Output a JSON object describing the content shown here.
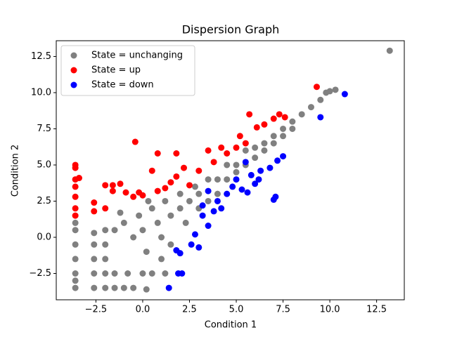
{
  "chart_data": {
    "type": "scatter",
    "title": "Dispersion Graph",
    "x_label": "Condition 1",
    "y_label": "Condition 2",
    "xlim": [
      -4.62,
      13.98
    ],
    "ylim": [
      -4.32,
      13.59
    ],
    "xticks": [
      {
        "value": -2.5,
        "label": "−2.5"
      },
      {
        "value": 0,
        "label": "0.0"
      },
      2.5,
      {
        "value": 5,
        "label": "5.0"
      },
      7.5,
      {
        "value": 10,
        "label": "10.0"
      },
      12.5
    ],
    "yticks": [
      {
        "value": -2.5,
        "label": "−2.5"
      },
      {
        "value": 0,
        "label": "0.0"
      },
      2.5,
      {
        "value": 5,
        "label": "5.0"
      },
      7.5,
      {
        "value": 10,
        "label": "10.0"
      },
      12.5
    ],
    "legend": "upper left",
    "series": [
      {
        "name": "State = unchanging",
        "color": "#808080",
        "x": [
          -3.6,
          -3.6,
          -3.6,
          -3.6,
          -3.6,
          -3.6,
          -3.6,
          -2.6,
          -2.6,
          -2.6,
          -2.6,
          -2.6,
          -2.0,
          -2.0,
          -2.0,
          -2.0,
          -2.0,
          -1.5,
          -1.0,
          -0.5,
          0.2,
          -1.5,
          -0.8,
          0.0,
          0.5,
          1.2,
          -1.5,
          -1.0,
          -0.5,
          -0.2,
          0.0,
          0.2,
          0.5,
          0.8,
          1.0,
          1.2,
          1.5,
          1.5,
          2.0,
          2.0,
          2.3,
          2.5,
          2.8,
          3.0,
          3.0,
          3.5,
          3.5,
          4.0,
          4.0,
          4.5,
          4.5,
          5.0,
          5.0,
          5.5,
          5.5,
          6.0,
          6.0,
          6.5,
          6.5,
          7.0,
          7.0,
          7.5,
          7.5,
          8.0,
          8.0,
          8.5,
          9.0,
          9.5,
          10.0,
          10.3,
          9.8,
          13.2,
          -1.2,
          0.3,
          1.0
        ],
        "values": [
          -3.5,
          -2.5,
          -1.5,
          -0.5,
          0.5,
          1.0,
          -3.0,
          -3.5,
          -2.5,
          -1.5,
          -0.5,
          0.3,
          -3.5,
          -2.5,
          -1.5,
          -0.5,
          0.5,
          -3.5,
          -3.5,
          -3.5,
          -3.6,
          -2.5,
          -2.5,
          -2.5,
          -2.5,
          -2.5,
          0.5,
          1.0,
          0.0,
          1.5,
          0.5,
          -1.0,
          2.0,
          1.0,
          0.0,
          2.5,
          1.5,
          -0.5,
          2.0,
          3.0,
          1.0,
          2.5,
          3.5,
          2.0,
          3.0,
          4.0,
          2.5,
          4.0,
          3.0,
          5.0,
          4.0,
          5.0,
          4.5,
          6.0,
          5.0,
          6.2,
          5.5,
          6.5,
          6.0,
          7.0,
          6.5,
          7.5,
          7.0,
          8.0,
          7.5,
          8.5,
          9.0,
          9.5,
          10.1,
          10.2,
          10.0,
          12.9,
          1.7,
          2.5,
          -1.5
        ]
      },
      {
        "name": "State = up",
        "color": "#ff0000",
        "x": [
          -3.6,
          -3.6,
          -3.6,
          -3.6,
          -3.6,
          -3.6,
          -3.6,
          -3.4,
          -2.6,
          -2.6,
          -2.0,
          -2.0,
          -1.6,
          -1.6,
          -1.2,
          -0.9,
          -0.5,
          -0.2,
          0.0,
          -0.4,
          0.5,
          0.8,
          0.8,
          1.2,
          1.5,
          1.8,
          1.8,
          2.2,
          2.5,
          3.0,
          3.5,
          3.8,
          4.2,
          4.5,
          5.0,
          5.2,
          5.7,
          5.5,
          6.1,
          6.5,
          7.0,
          7.3,
          7.6,
          9.3
        ],
        "values": [
          5.0,
          4.8,
          4.0,
          3.5,
          2.8,
          2.0,
          1.5,
          4.1,
          2.4,
          1.8,
          2.0,
          3.6,
          3.6,
          3.2,
          3.7,
          3.1,
          2.8,
          3.1,
          2.9,
          6.6,
          4.6,
          3.2,
          5.8,
          3.4,
          3.8,
          4.2,
          5.8,
          4.8,
          3.6,
          4.6,
          6.0,
          5.2,
          6.2,
          5.8,
          6.2,
          7.0,
          8.5,
          6.5,
          7.6,
          7.8,
          8.2,
          8.5,
          8.3,
          10.4
        ]
      },
      {
        "name": "State = down",
        "color": "#0000ff",
        "x": [
          10.8,
          9.5,
          7.5,
          7.2,
          7.0,
          7.1,
          6.8,
          6.3,
          6.2,
          6.0,
          5.5,
          5.6,
          5.8,
          5.3,
          5.0,
          4.8,
          4.5,
          4.2,
          3.8,
          3.5,
          3.2,
          2.8,
          3.0,
          2.6,
          2.0,
          2.1,
          1.9,
          1.4,
          1.8,
          3.5,
          3.2,
          4.0
        ],
        "values": [
          9.9,
          8.3,
          5.6,
          5.3,
          2.6,
          2.8,
          4.8,
          4.6,
          4.0,
          3.7,
          5.2,
          3.1,
          4.3,
          3.3,
          4.0,
          3.5,
          3.0,
          2.0,
          1.8,
          3.2,
          1.5,
          0.2,
          -0.7,
          -0.5,
          -1.1,
          -2.5,
          -2.5,
          -3.5,
          -0.9,
          0.8,
          2.2,
          2.5
        ]
      }
    ]
  }
}
